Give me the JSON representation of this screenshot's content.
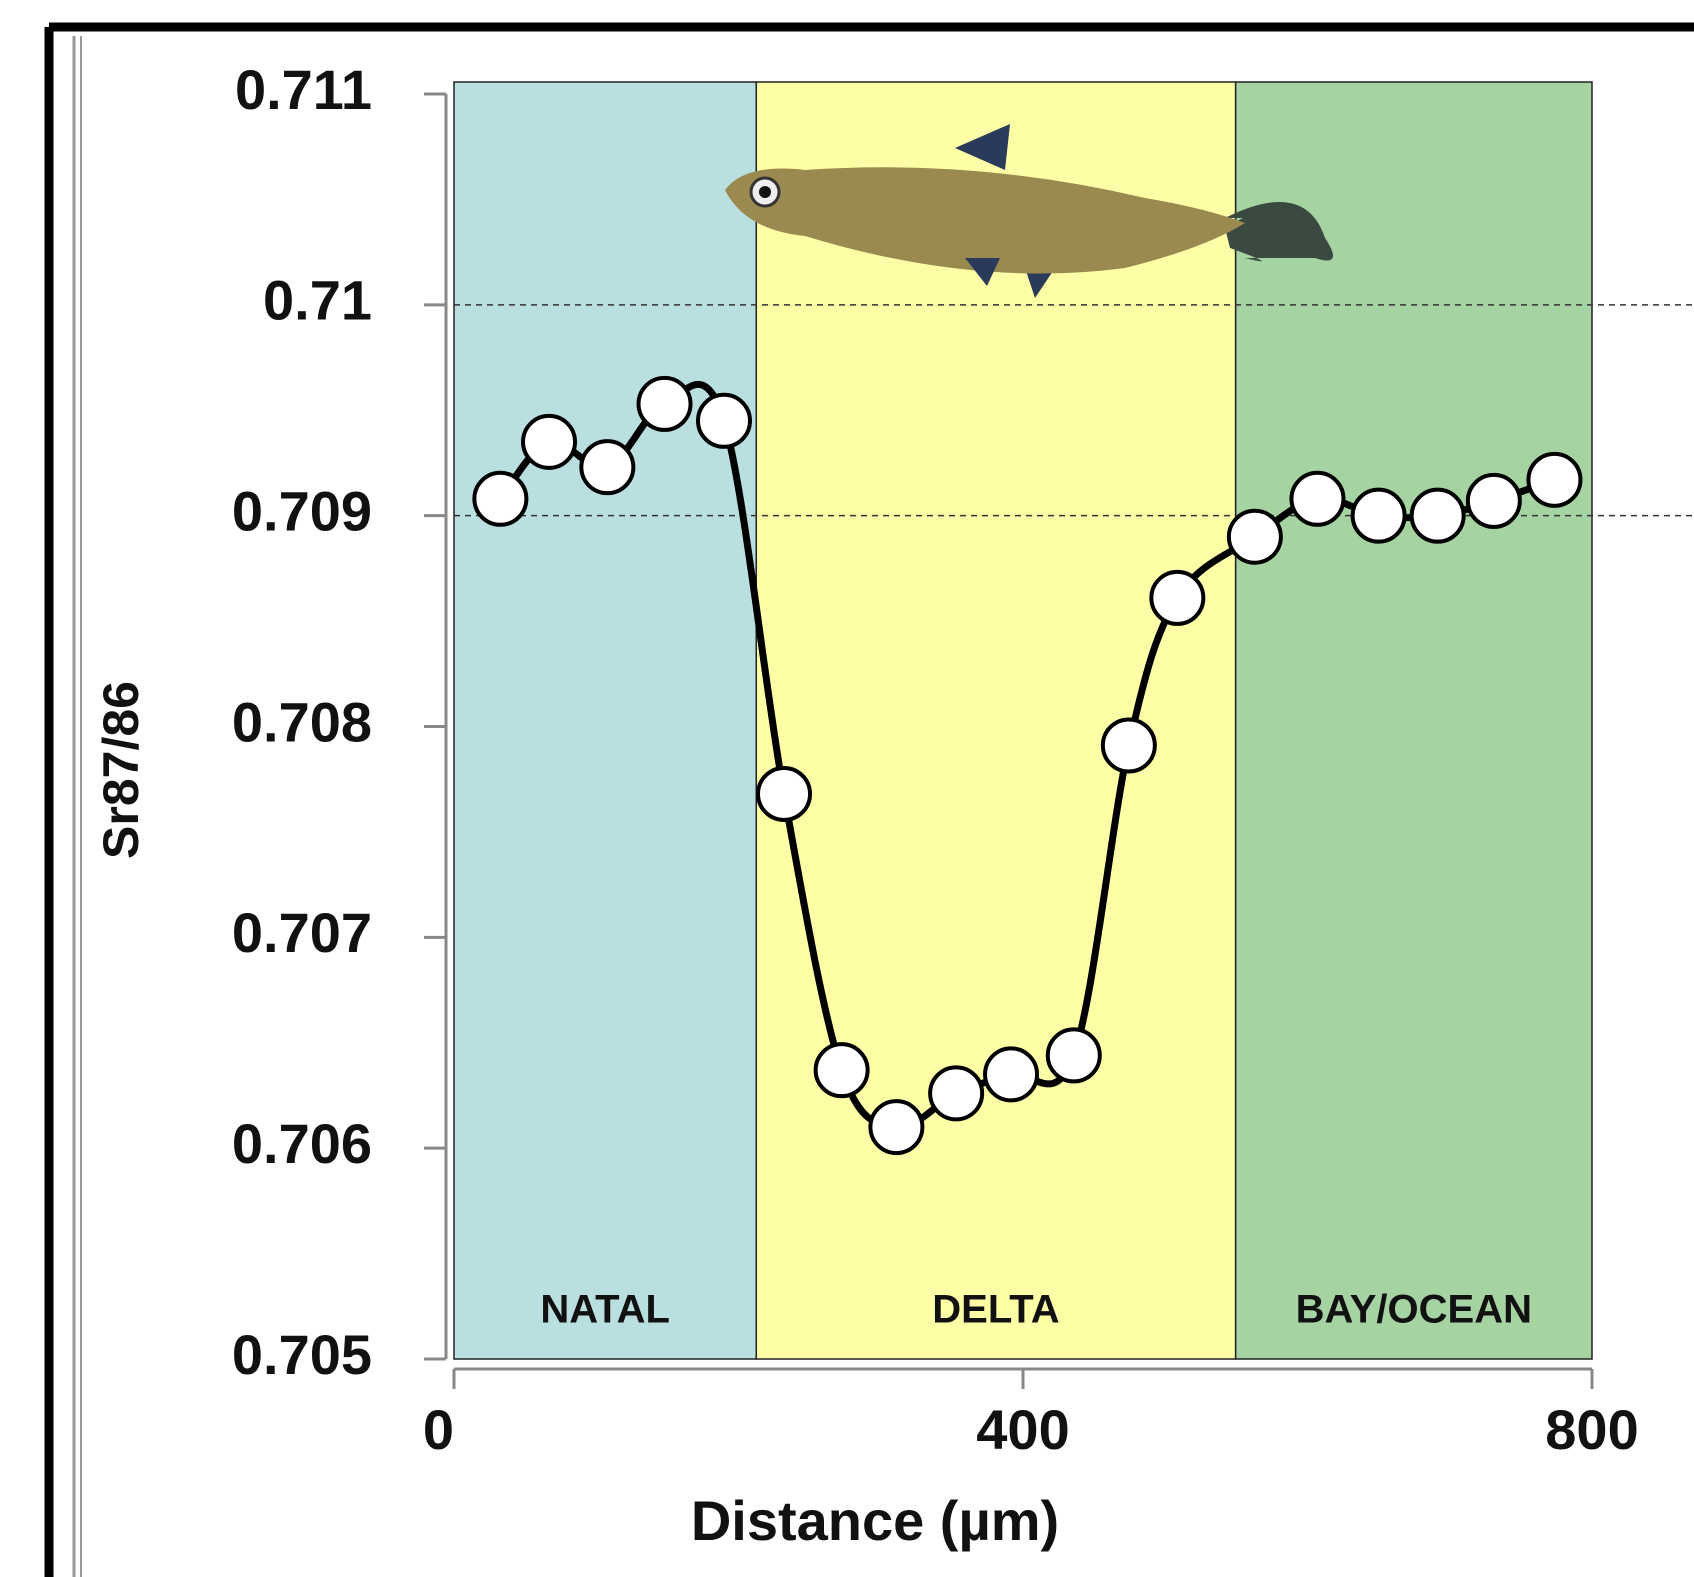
{
  "chart_data": {
    "type": "line",
    "x_label": "Distance (µm)",
    "y_label": "Sr87/86",
    "x": [
      32.6,
      66.8,
      107.8,
      148,
      189.8,
      232,
      272.5,
      311,
      353,
      391.6,
      435.7,
      474.4,
      508.5,
      563,
      607,
      650,
      691.5,
      731,
      773.6
    ],
    "series": [
      {
        "name": "Sr87/86",
        "color": "#000000",
        "values": [
          0.70908,
          0.70935,
          0.70923,
          0.70953,
          0.70945,
          0.70768,
          0.70637,
          0.7061,
          0.70626,
          0.70635,
          0.70644,
          0.70791,
          0.70861,
          0.7089,
          0.70908,
          0.709,
          0.709,
          0.70907,
          0.70917
        ]
      }
    ],
    "regions": [
      {
        "label": "NATAL",
        "start": 0,
        "end": 212.5,
        "color": "#b9dfe0"
      },
      {
        "label": "DELTA",
        "start": 212.5,
        "end": 549.5,
        "color": "#fefea6"
      },
      {
        "label": "BAY/OCEAN",
        "start": 549.5,
        "end": 800,
        "color": "#a6d3a2"
      }
    ],
    "reference_lines": [
      0.709,
      0.71
    ],
    "xlim": [
      0,
      800
    ],
    "xticks": [
      0,
      400,
      800
    ],
    "ylim": [
      0.705,
      0.711
    ],
    "yticks": [
      0.705,
      0.706,
      0.707,
      0.708,
      0.709,
      0.71,
      0.711
    ]
  }
}
